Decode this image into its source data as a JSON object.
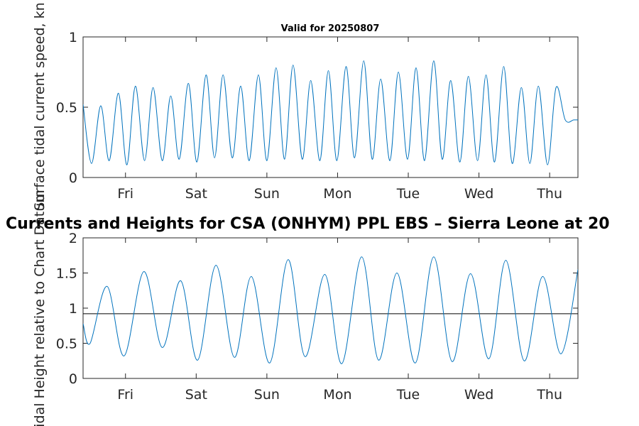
{
  "chart_data": [
    {
      "type": "line",
      "title": "Valid for 20250807",
      "ylabel": "Surface tidal current speed, kn",
      "xlim": [
        0,
        7
      ],
      "ylim": [
        0,
        1
      ],
      "yticks": [
        0,
        0.5,
        1
      ],
      "ytick_labels": [
        "0",
        "0.5",
        "1"
      ],
      "xticks": [
        0.6,
        1.6,
        2.6,
        3.6,
        4.6,
        5.6,
        6.6
      ],
      "xtick_labels": [
        "Fri",
        "Sat",
        "Sun",
        "Mon",
        "Tue",
        "Wed",
        "Thu"
      ],
      "grid": false,
      "series": [
        {
          "color": "#0072BD",
          "x": [
            0.0,
            0.12,
            0.25,
            0.37,
            0.5,
            0.62,
            0.74,
            0.87,
            0.99,
            1.12,
            1.24,
            1.36,
            1.49,
            1.61,
            1.74,
            1.86,
            1.98,
            2.11,
            2.23,
            2.35,
            2.48,
            2.6,
            2.73,
            2.85,
            2.97,
            3.1,
            3.22,
            3.35,
            3.47,
            3.59,
            3.72,
            3.84,
            3.97,
            4.09,
            4.21,
            4.34,
            4.46,
            4.59,
            4.71,
            4.83,
            4.96,
            5.08,
            5.2,
            5.33,
            5.45,
            5.58,
            5.7,
            5.82,
            5.95,
            6.07,
            6.2,
            6.32,
            6.44,
            6.57,
            6.69,
            6.82,
            6.94,
            7.0
          ],
          "y": [
            0.52,
            0.1,
            0.51,
            0.12,
            0.6,
            0.09,
            0.65,
            0.12,
            0.64,
            0.12,
            0.58,
            0.13,
            0.67,
            0.11,
            0.73,
            0.14,
            0.73,
            0.14,
            0.65,
            0.12,
            0.73,
            0.12,
            0.78,
            0.13,
            0.8,
            0.13,
            0.69,
            0.12,
            0.76,
            0.12,
            0.79,
            0.14,
            0.83,
            0.13,
            0.7,
            0.12,
            0.75,
            0.13,
            0.78,
            0.12,
            0.83,
            0.13,
            0.69,
            0.11,
            0.72,
            0.12,
            0.73,
            0.11,
            0.79,
            0.1,
            0.64,
            0.1,
            0.65,
            0.09,
            0.64,
            0.41,
            0.41,
            0.41
          ]
        }
      ]
    },
    {
      "type": "line",
      "title": "Currents and Heights for CSA (ONHYM) PPL EBS  – Sierra Leone at 20",
      "ylabel": "Tidal Height relative to Chart Datum",
      "xlim": [
        0,
        7
      ],
      "ylim": [
        0,
        2
      ],
      "yticks": [
        0,
        0.5,
        1,
        1.5,
        2
      ],
      "ytick_labels": [
        "0",
        "0.5",
        "1",
        "1.5",
        "2"
      ],
      "xticks": [
        0.6,
        1.6,
        2.6,
        3.6,
        4.6,
        5.6,
        6.6
      ],
      "xtick_labels": [
        "Fri",
        "Sat",
        "Sun",
        "Mon",
        "Tue",
        "Wed",
        "Thu"
      ],
      "reference_line": 0.92,
      "grid": false,
      "series": [
        {
          "color": "#0072BD",
          "x": [
            0.0,
            0.1,
            0.34,
            0.58,
            0.86,
            1.12,
            1.38,
            1.62,
            1.88,
            2.14,
            2.38,
            2.64,
            2.9,
            3.14,
            3.42,
            3.66,
            3.94,
            4.18,
            4.44,
            4.7,
            4.96,
            5.22,
            5.48,
            5.74,
            5.98,
            6.24,
            6.5,
            6.76,
            7.0
          ],
          "y": [
            0.78,
            0.5,
            1.31,
            0.32,
            1.52,
            0.44,
            1.39,
            0.26,
            1.61,
            0.3,
            1.45,
            0.22,
            1.69,
            0.31,
            1.48,
            0.21,
            1.73,
            0.26,
            1.5,
            0.22,
            1.73,
            0.24,
            1.49,
            0.28,
            1.68,
            0.25,
            1.45,
            0.35,
            1.55
          ]
        }
      ]
    }
  ]
}
